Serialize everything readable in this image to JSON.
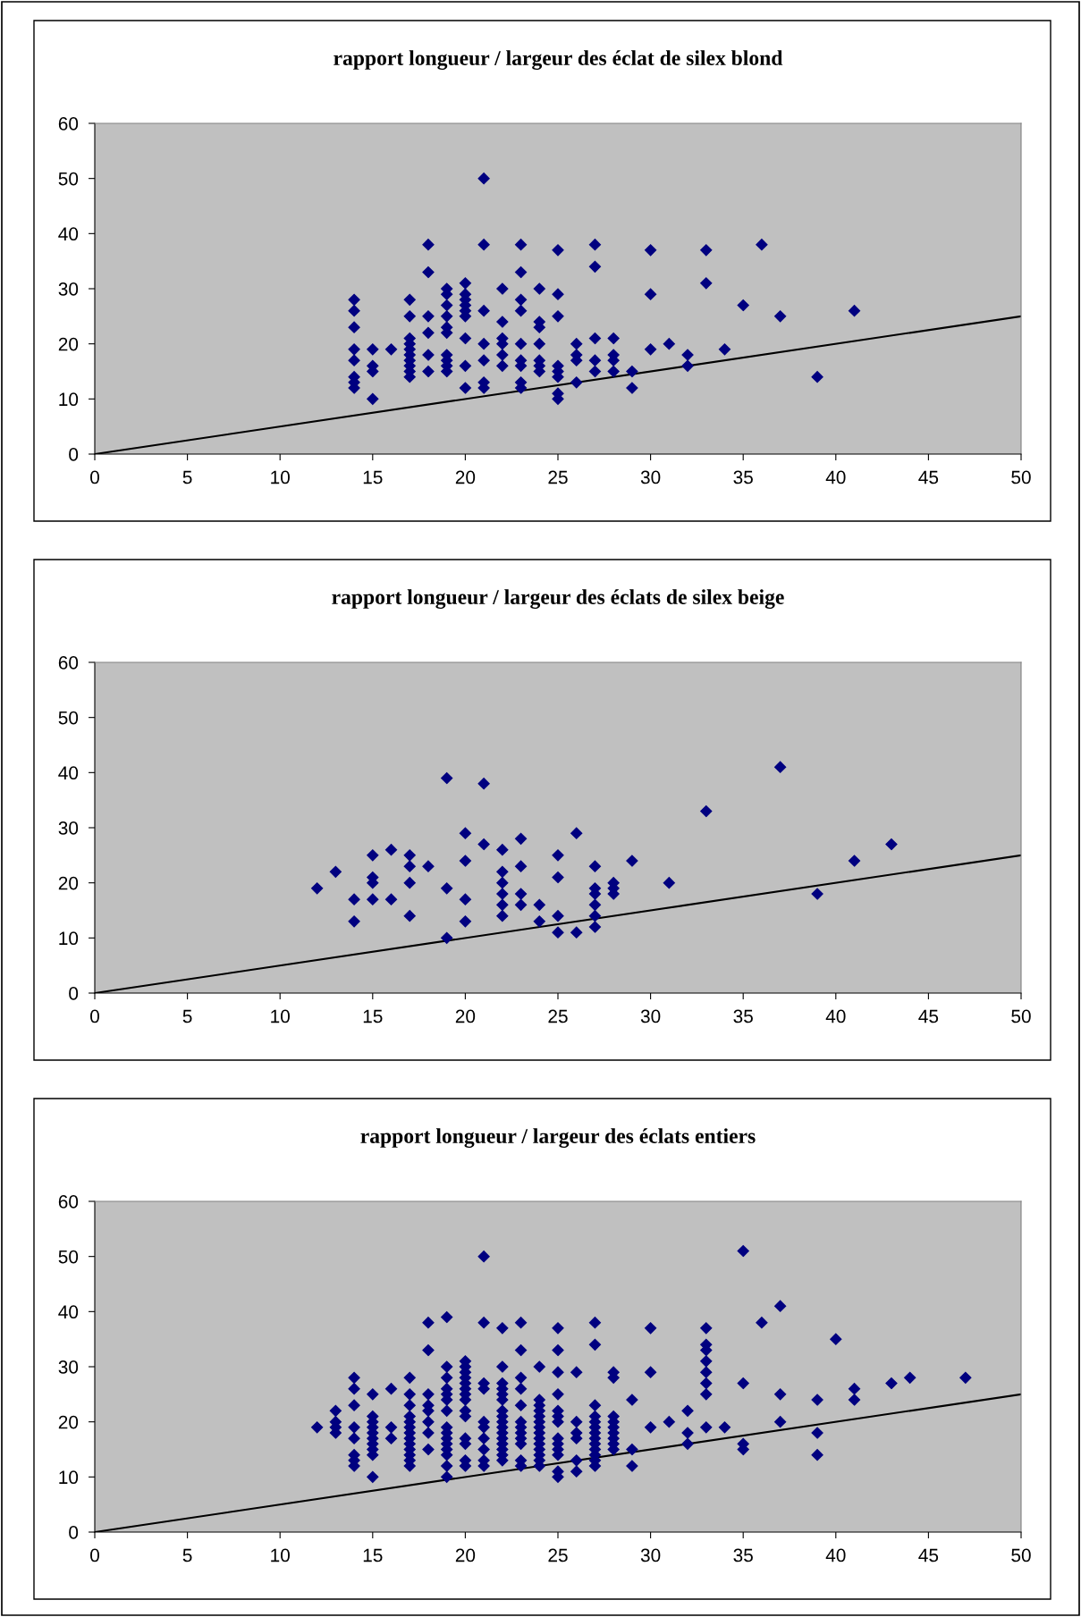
{
  "chart_data": [
    {
      "type": "scatter",
      "title": "rapport longueur / largeur des éclat de silex blond",
      "xlim": [
        0,
        50
      ],
      "ylim": [
        0,
        60
      ],
      "xticks": [
        0,
        5,
        10,
        15,
        20,
        25,
        30,
        35,
        40,
        45,
        50
      ],
      "yticks": [
        0,
        10,
        20,
        30,
        40,
        50,
        60
      ],
      "marker": "diamond",
      "grid": false,
      "series": [
        {
          "color": "#000080",
          "x": [
            14,
            14,
            14,
            14,
            14,
            14,
            14,
            14,
            15,
            15,
            15,
            15,
            16,
            17,
            17,
            17,
            17,
            17,
            17,
            17,
            17,
            17,
            17,
            18,
            18,
            18,
            18,
            18,
            18,
            19,
            19,
            19,
            19,
            19,
            19,
            19,
            19,
            19,
            19,
            20,
            20,
            20,
            20,
            20,
            20,
            20,
            20,
            20,
            21,
            21,
            21,
            21,
            21,
            21,
            21,
            22,
            22,
            22,
            22,
            22,
            22,
            23,
            23,
            23,
            23,
            23,
            23,
            23,
            23,
            23,
            24,
            24,
            24,
            24,
            24,
            24,
            24,
            25,
            25,
            25,
            25,
            25,
            25,
            25,
            25,
            26,
            26,
            26,
            26,
            27,
            27,
            27,
            27,
            27,
            28,
            28,
            28,
            28,
            29,
            29,
            30,
            30,
            30,
            31,
            32,
            32,
            33,
            33,
            34,
            35,
            36,
            37,
            39,
            41
          ],
          "values": [
            28,
            26,
            23,
            19,
            17,
            14,
            13,
            12,
            19,
            16,
            15,
            10,
            19,
            28,
            25,
            21,
            20,
            19,
            18,
            17,
            16,
            15,
            14,
            38,
            33,
            25,
            22,
            18,
            15,
            30,
            29,
            27,
            25,
            23,
            22,
            18,
            17,
            16,
            15,
            31,
            29,
            28,
            27,
            26,
            25,
            21,
            16,
            12,
            50,
            38,
            26,
            20,
            17,
            13,
            12,
            30,
            24,
            21,
            20,
            18,
            16,
            38,
            33,
            28,
            26,
            20,
            17,
            16,
            13,
            12,
            30,
            24,
            23,
            20,
            17,
            16,
            15,
            37,
            29,
            25,
            16,
            15,
            14,
            11,
            10,
            20,
            18,
            17,
            13,
            38,
            34,
            21,
            17,
            15,
            21,
            18,
            17,
            15,
            15,
            12,
            37,
            29,
            19,
            20,
            18,
            16,
            37,
            31,
            19,
            27,
            38,
            25,
            14,
            26
          ]
        },
        {
          "type": "line",
          "color": "#000000",
          "line_style": "solid",
          "marker": "none",
          "x": [
            0,
            50
          ],
          "values": [
            0,
            25
          ]
        }
      ]
    },
    {
      "type": "scatter",
      "title": "rapport longueur / largeur des éclats de silex beige",
      "xlim": [
        0,
        50
      ],
      "ylim": [
        0,
        60
      ],
      "xticks": [
        0,
        5,
        10,
        15,
        20,
        25,
        30,
        35,
        40,
        45,
        50
      ],
      "yticks": [
        0,
        10,
        20,
        30,
        40,
        50,
        60
      ],
      "marker": "diamond",
      "grid": false,
      "series": [
        {
          "color": "#000080",
          "x": [
            12,
            13,
            14,
            14,
            15,
            15,
            15,
            15,
            16,
            16,
            17,
            17,
            17,
            17,
            18,
            19,
            19,
            19,
            20,
            20,
            20,
            20,
            21,
            21,
            22,
            22,
            22,
            22,
            22,
            22,
            23,
            23,
            23,
            23,
            24,
            24,
            25,
            25,
            25,
            25,
            26,
            26,
            27,
            27,
            27,
            27,
            27,
            27,
            28,
            28,
            28,
            29,
            31,
            33,
            37,
            39,
            41,
            43
          ],
          "values": [
            19,
            22,
            17,
            13,
            25,
            21,
            20,
            17,
            26,
            17,
            25,
            23,
            20,
            14,
            23,
            39,
            19,
            10,
            29,
            24,
            17,
            13,
            38,
            27,
            26,
            22,
            20,
            18,
            16,
            14,
            28,
            23,
            18,
            16,
            16,
            13,
            25,
            21,
            14,
            11,
            29,
            11,
            23,
            19,
            18,
            16,
            14,
            12,
            20,
            19,
            18,
            24,
            20,
            33,
            41,
            18,
            24,
            27
          ]
        },
        {
          "type": "line",
          "color": "#000000",
          "line_style": "solid",
          "marker": "none",
          "x": [
            0,
            50
          ],
          "values": [
            0,
            25
          ]
        }
      ]
    },
    {
      "type": "scatter",
      "title": "rapport longueur / largeur des éclats entiers",
      "xlim": [
        0,
        50
      ],
      "ylim": [
        0,
        60
      ],
      "xticks": [
        0,
        5,
        10,
        15,
        20,
        25,
        30,
        35,
        40,
        45,
        50
      ],
      "yticks": [
        0,
        10,
        20,
        30,
        40,
        50,
        60
      ],
      "marker": "diamond",
      "grid": false,
      "series": [
        {
          "color": "#000080",
          "x": [
            12,
            13,
            13,
            13,
            13,
            14,
            14,
            14,
            14,
            14,
            14,
            14,
            14,
            15,
            15,
            15,
            15,
            15,
            15,
            15,
            15,
            15,
            15,
            16,
            16,
            16,
            17,
            17,
            17,
            17,
            17,
            17,
            17,
            17,
            17,
            17,
            17,
            17,
            17,
            18,
            18,
            18,
            18,
            18,
            18,
            18,
            18,
            19,
            19,
            19,
            19,
            19,
            19,
            19,
            19,
            19,
            19,
            19,
            19,
            19,
            19,
            19,
            20,
            20,
            20,
            20,
            20,
            20,
            20,
            20,
            20,
            20,
            20,
            20,
            20,
            20,
            21,
            21,
            21,
            21,
            21,
            21,
            21,
            21,
            21,
            21,
            22,
            22,
            22,
            22,
            22,
            22,
            22,
            22,
            22,
            22,
            22,
            22,
            22,
            22,
            22,
            22,
            23,
            23,
            23,
            23,
            23,
            23,
            23,
            23,
            23,
            23,
            23,
            23,
            24,
            24,
            24,
            24,
            24,
            24,
            24,
            24,
            24,
            24,
            24,
            24,
            24,
            24,
            25,
            25,
            25,
            25,
            25,
            25,
            25,
            25,
            25,
            25,
            25,
            25,
            25,
            26,
            26,
            26,
            26,
            26,
            26,
            27,
            27,
            27,
            27,
            27,
            27,
            27,
            27,
            27,
            27,
            27,
            27,
            27,
            28,
            28,
            28,
            28,
            28,
            28,
            28,
            28,
            28,
            29,
            29,
            29,
            30,
            30,
            30,
            31,
            32,
            32,
            32,
            33,
            33,
            33,
            33,
            33,
            33,
            33,
            33,
            34,
            35,
            35,
            35,
            35,
            36,
            37,
            37,
            37,
            39,
            39,
            39,
            40,
            41,
            41,
            43,
            44,
            47
          ],
          "values": [
            19,
            22,
            20,
            19,
            18,
            28,
            26,
            23,
            19,
            17,
            14,
            13,
            12,
            25,
            21,
            20,
            19,
            18,
            17,
            16,
            15,
            14,
            10,
            26,
            19,
            17,
            28,
            25,
            23,
            21,
            20,
            19,
            18,
            17,
            16,
            15,
            14,
            13,
            12,
            38,
            33,
            25,
            23,
            22,
            20,
            18,
            15,
            39,
            30,
            28,
            26,
            25,
            24,
            22,
            19,
            18,
            17,
            16,
            15,
            14,
            12,
            10,
            31,
            30,
            29,
            28,
            27,
            26,
            25,
            24,
            22,
            21,
            17,
            16,
            13,
            12,
            50,
            38,
            27,
            26,
            20,
            19,
            17,
            15,
            13,
            12,
            37,
            30,
            27,
            26,
            25,
            24,
            22,
            21,
            20,
            19,
            18,
            17,
            16,
            15,
            14,
            13,
            38,
            33,
            28,
            26,
            23,
            20,
            19,
            18,
            17,
            16,
            13,
            12,
            30,
            24,
            23,
            22,
            21,
            20,
            19,
            18,
            17,
            16,
            15,
            14,
            13,
            12,
            37,
            33,
            29,
            25,
            22,
            21,
            20,
            17,
            16,
            15,
            14,
            11,
            10,
            29,
            20,
            18,
            17,
            13,
            11,
            38,
            34,
            23,
            21,
            20,
            19,
            18,
            17,
            16,
            15,
            14,
            13,
            12,
            29,
            28,
            21,
            20,
            19,
            18,
            17,
            16,
            15,
            24,
            15,
            12,
            37,
            29,
            19,
            20,
            22,
            18,
            16,
            37,
            34,
            33,
            31,
            29,
            27,
            25,
            19,
            19,
            51,
            27,
            16,
            15,
            38,
            41,
            25,
            20,
            24,
            18,
            14,
            35,
            26,
            24,
            27,
            28,
            28
          ]
        },
        {
          "type": "line",
          "color": "#000000",
          "line_style": "solid",
          "marker": "none",
          "x": [
            0,
            50
          ],
          "values": [
            0,
            25
          ]
        }
      ]
    }
  ]
}
